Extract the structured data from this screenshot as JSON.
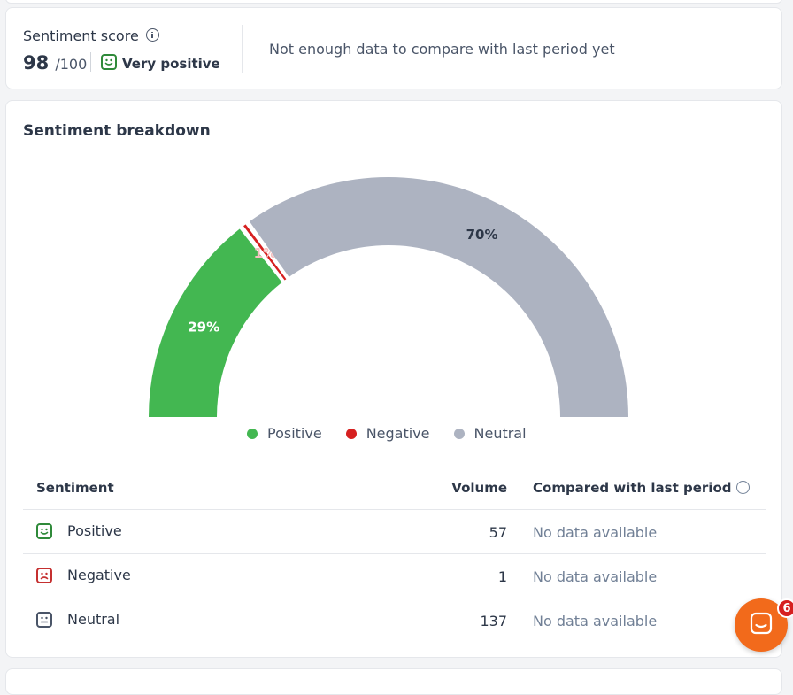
{
  "score": {
    "title": "Sentiment score",
    "value": "98",
    "max": "/100",
    "label": "Very positive",
    "compare_text": "Not enough data to compare with last period yet"
  },
  "breakdown": {
    "title": "Sentiment breakdown",
    "legend": [
      {
        "label": "Positive",
        "color": "#43b751"
      },
      {
        "label": "Negative",
        "color": "#d62020"
      },
      {
        "label": "Neutral",
        "color": "#adb3c1"
      }
    ]
  },
  "chart_data": {
    "type": "pie",
    "variant": "half-donut gauge",
    "categories": [
      "Positive",
      "Negative",
      "Neutral"
    ],
    "values": [
      29,
      1,
      70
    ],
    "data_labels": [
      "29%",
      "1%",
      "70%"
    ],
    "colors": [
      "#43b751",
      "#d62020",
      "#adb3c1"
    ],
    "legend_position": "bottom"
  },
  "table": {
    "headers": {
      "sentiment": "Sentiment",
      "volume": "Volume",
      "compare": "Compared with last period"
    },
    "rows": [
      {
        "label": "Positive",
        "volume": "57",
        "compare": "No data available",
        "icon": "smile-face-icon",
        "color": "#2f8a3a"
      },
      {
        "label": "Negative",
        "volume": "1",
        "compare": "No data available",
        "icon": "sad-face-icon",
        "color": "#c53030"
      },
      {
        "label": "Neutral",
        "volume": "137",
        "compare": "No data available",
        "icon": "neutral-face-icon",
        "color": "#4a5568"
      }
    ]
  },
  "chat": {
    "badge": "6",
    "icon": "chat-icon",
    "color": "#f26a1b"
  }
}
